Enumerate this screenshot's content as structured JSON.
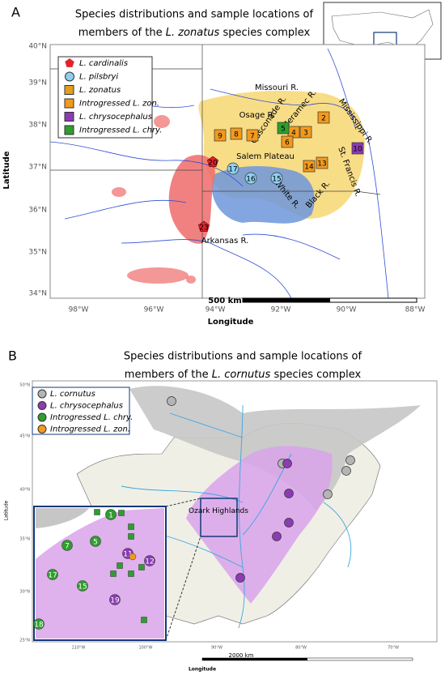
{
  "panel_a": {
    "letter": "A",
    "title": {
      "line1": "Species distributions and sample locations of",
      "line2_start": "members of the",
      "line2_species": "L. zonatus",
      "line2_end": "species complex"
    },
    "legend": [
      "L. cardinalis",
      "L. pilsbryi",
      "L. zonatus",
      "Introgressed L. zon.",
      "L. chrysocephalus",
      "Introgressed L. chry."
    ],
    "lat_ticks": [
      "40°N",
      "39°N",
      "38°N",
      "37°N",
      "36°N",
      "35°N",
      "34°N"
    ],
    "lon_ticks": [
      "98°W",
      "96°W",
      "94°W",
      "92°W",
      "90°W",
      "88°W"
    ],
    "y_label": "Latitude",
    "x_label": "Longitude",
    "scale": "500 km",
    "features": [
      "Missouri R.",
      "Osage R.",
      "Gasconade R.",
      "Meramec R.",
      "Mississippi R.",
      "Salem Plateau",
      "White R.",
      "Black R.",
      "St. Francis R.",
      "Arkansas R."
    ],
    "sites": [
      "2",
      "3",
      "4",
      "5",
      "6",
      "7",
      "8",
      "9",
      "10",
      "13",
      "14",
      "15",
      "16",
      "17",
      "20",
      "23"
    ]
  },
  "panel_b": {
    "letter": "B",
    "title": {
      "line1": "Species distributions and sample locations of",
      "line2_start": "members of the",
      "line2_species": "L. cornutus",
      "line2_end": "species complex"
    },
    "legend": [
      "L. cornutus",
      "L. chrysocephalus",
      "Introgressed L. chry.",
      "Introgressed L. zon."
    ],
    "region": "Ozark Highlands",
    "lat_ticks": [
      "50°N",
      "45°N",
      "40°N",
      "35°N",
      "30°N",
      "25°N"
    ],
    "lon_ticks": [
      "110°W",
      "100°W",
      "90°W",
      "80°W",
      "70°W"
    ],
    "y_label": "Latitude",
    "x_label": "Longitude",
    "scale": "2000 km",
    "sites": [
      "1",
      "5",
      "7",
      "11",
      "12",
      "15",
      "17",
      "18",
      "19"
    ]
  }
}
